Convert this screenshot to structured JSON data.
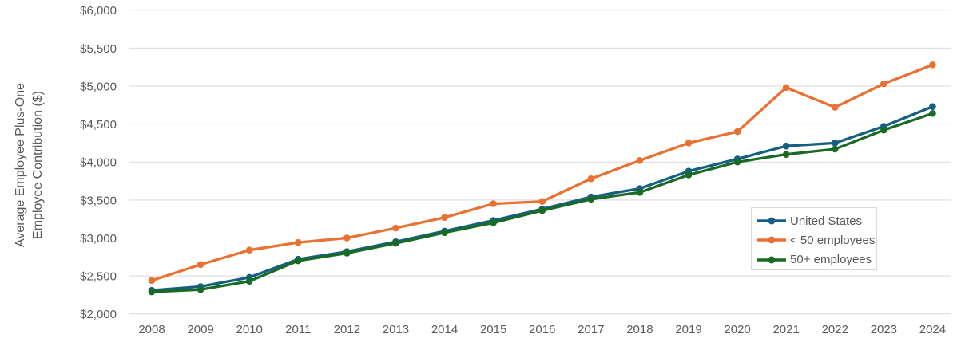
{
  "chart_data": {
    "type": "line",
    "title": "",
    "ylabel_line1": "Average Employee Plus-One",
    "ylabel_line2": "Employee Contribution ($)",
    "xlabel": "",
    "grid": true,
    "grid_color": "#D9D9D9",
    "axis_text_color": "#595959",
    "legend_position": "middle-right",
    "ylim": [
      2000,
      6000
    ],
    "categories": [
      "2008",
      "2009",
      "2010",
      "2011",
      "2012",
      "2013",
      "2014",
      "2015",
      "2016",
      "2017",
      "2018",
      "2019",
      "2020",
      "2021",
      "2022",
      "2023",
      "2024"
    ],
    "y_ticks": [
      {
        "label": "$2,000",
        "value": 2000
      },
      {
        "label": "$2,500",
        "value": 2500
      },
      {
        "label": "$3,000",
        "value": 3000
      },
      {
        "label": "$3,500",
        "value": 3500
      },
      {
        "label": "$4,000",
        "value": 4000
      },
      {
        "label": "$4,500",
        "value": 4500
      },
      {
        "label": "$5,000",
        "value": 5000
      },
      {
        "label": "$5,500",
        "value": 5500
      },
      {
        "label": "$6,000",
        "value": 6000
      }
    ],
    "series": [
      {
        "name": "United States",
        "color": "#156082",
        "values": [
          2310,
          2360,
          2480,
          2720,
          2820,
          2950,
          3090,
          3230,
          3380,
          3540,
          3650,
          3880,
          4040,
          4210,
          4250,
          4470,
          4730
        ]
      },
      {
        "name": "< 50 employees",
        "color": "#E97132",
        "values": [
          2440,
          2650,
          2840,
          2940,
          3000,
          3130,
          3270,
          3450,
          3480,
          3780,
          4020,
          4250,
          4400,
          4980,
          4720,
          5030,
          5280
        ]
      },
      {
        "name": "50+ employees",
        "color": "#196B24",
        "values": [
          2290,
          2320,
          2430,
          2700,
          2800,
          2930,
          3070,
          3200,
          3360,
          3510,
          3600,
          3830,
          4000,
          4100,
          4170,
          4420,
          4640
        ]
      }
    ]
  }
}
